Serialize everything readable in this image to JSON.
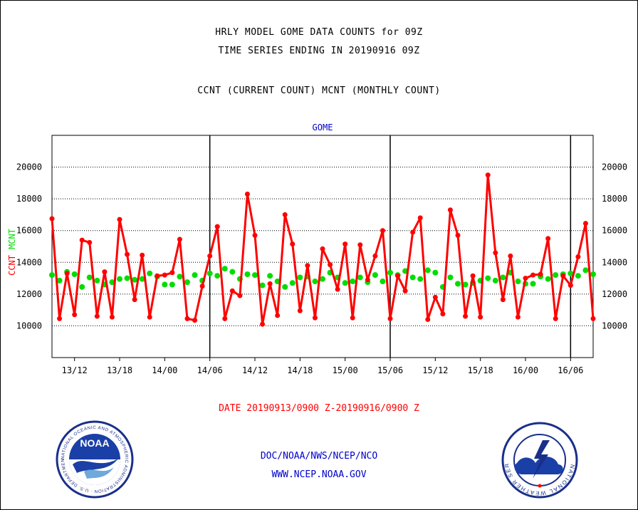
{
  "header": {
    "title_line1": "HRLY MODEL GOME DATA COUNTS for 09Z",
    "title_line2": "TIME SERIES ENDING IN 20190916 09Z",
    "title_line3": "CCNT (CURRENT COUNT) MCNT (MONTHLY COUNT)"
  },
  "footer": {
    "date_range": "DATE 20190913/0900 Z-20190916/0900 Z",
    "credit_org": "DOC/NOAA/NWS/NCEP/NCO",
    "credit_url": "WWW.NCEP.NOAA.GOV"
  },
  "logos": {
    "noaa_badge": "NOAA",
    "noaa_ring": "NATIONAL OCEANIC AND ATMOSPHERIC ADMINISTRATION · U.S. DEPARTMENT OF COMMERCE",
    "nws_ring": "NATIONAL WEATHER SERVICE"
  },
  "colors": {
    "ccnt": "#ff0000",
    "mcnt": "#00dd00",
    "label_blue": "#0000cc"
  },
  "chart_data": {
    "type": "line",
    "title": "GOME",
    "ylabel_parts": [
      "CCNT",
      "MCNT"
    ],
    "ylim": [
      8000,
      22000
    ],
    "yticks": [
      10000,
      12000,
      14000,
      16000,
      18000,
      20000
    ],
    "x_start_hour_label": "13/09",
    "x_tick_labels": [
      "13/12",
      "13/18",
      "14/00",
      "14/06",
      "14/12",
      "14/18",
      "15/00",
      "15/06",
      "15/12",
      "15/18",
      "16/00",
      "16/06"
    ],
    "x_tick_hours": [
      3,
      9,
      15,
      21,
      27,
      33,
      39,
      45,
      51,
      57,
      63,
      69
    ],
    "x_range_hours": [
      0,
      72
    ],
    "day_boundary_hours": [
      21,
      45,
      69
    ],
    "grid": true,
    "series": [
      {
        "name": "CCNT",
        "color": "#ff0000",
        "values": [
          16750,
          10450,
          13300,
          10700,
          15400,
          15250,
          10600,
          13400,
          10550,
          16700,
          14500,
          11650,
          14450,
          10550,
          13150,
          13200,
          13350,
          15450,
          10450,
          10350,
          12500,
          14400,
          16250,
          10450,
          12200,
          11900,
          18300,
          15700,
          10100,
          12650,
          10650,
          17000,
          15150,
          10950,
          13800,
          10500,
          14850,
          13850,
          12300,
          15150,
          10500,
          15100,
          12900,
          14400,
          16000,
          10450,
          13150,
          12200,
          15900,
          16800,
          10400,
          11800,
          10750,
          17300,
          15700,
          10600,
          13150,
          10550,
          19500,
          14600,
          11650,
          14400,
          10550,
          13000,
          13200,
          13250,
          15500,
          10450,
          13150,
          12550,
          14350,
          16450,
          10450
        ]
      },
      {
        "name": "MCNT",
        "color": "#00dd00",
        "values": [
          13200,
          12850,
          13400,
          13250,
          12450,
          13050,
          12850,
          12600,
          12750,
          12950,
          13000,
          12900,
          12950,
          13300,
          13100,
          12600,
          12600,
          13100,
          12750,
          13200,
          12850,
          13300,
          13150,
          13600,
          13400,
          12950,
          13250,
          13200,
          12550,
          13150,
          12800,
          12450,
          12700,
          13050,
          13100,
          12800,
          12950,
          13350,
          13050,
          12700,
          12800,
          13050,
          12750,
          13200,
          12800,
          13350,
          13200,
          13450,
          13050,
          12950,
          13500,
          13350,
          12450,
          13050,
          12650,
          12600,
          12700,
          12850,
          13000,
          12850,
          13050,
          13350,
          12800,
          12650,
          12650,
          13100,
          12950,
          13200,
          13250,
          13300,
          13150,
          13500,
          13250
        ]
      }
    ]
  }
}
